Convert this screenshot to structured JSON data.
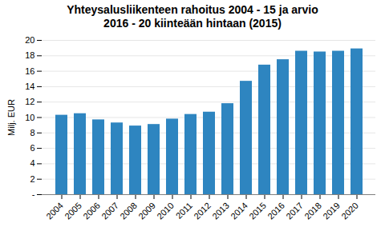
{
  "chart_data": {
    "type": "bar",
    "title": "Yhteysalusliikenteen rahoitus 2004 - 15 ja arvio\n2016 - 20 kiinteään hintaan (2015)",
    "ylabel": "Milj. EUR",
    "categories": [
      "2004",
      "2005",
      "2006",
      "2007",
      "2008",
      "2009",
      "2010",
      "2011",
      "2012",
      "2013",
      "2014",
      "2015",
      "2016",
      "2017",
      "2018",
      "2019",
      "2020"
    ],
    "values": [
      10.3,
      10.5,
      9.7,
      9.3,
      8.9,
      9.1,
      9.8,
      10.4,
      10.7,
      11.8,
      14.7,
      16.8,
      17.5,
      18.6,
      18.5,
      18.6,
      18.9
    ],
    "color": "#2e85c0",
    "ylim": [
      0,
      20
    ],
    "yticks": [
      {
        "value": 0,
        "label": "-"
      },
      2,
      4,
      6,
      8,
      10,
      12,
      14,
      16,
      18,
      20
    ],
    "grid": true
  }
}
